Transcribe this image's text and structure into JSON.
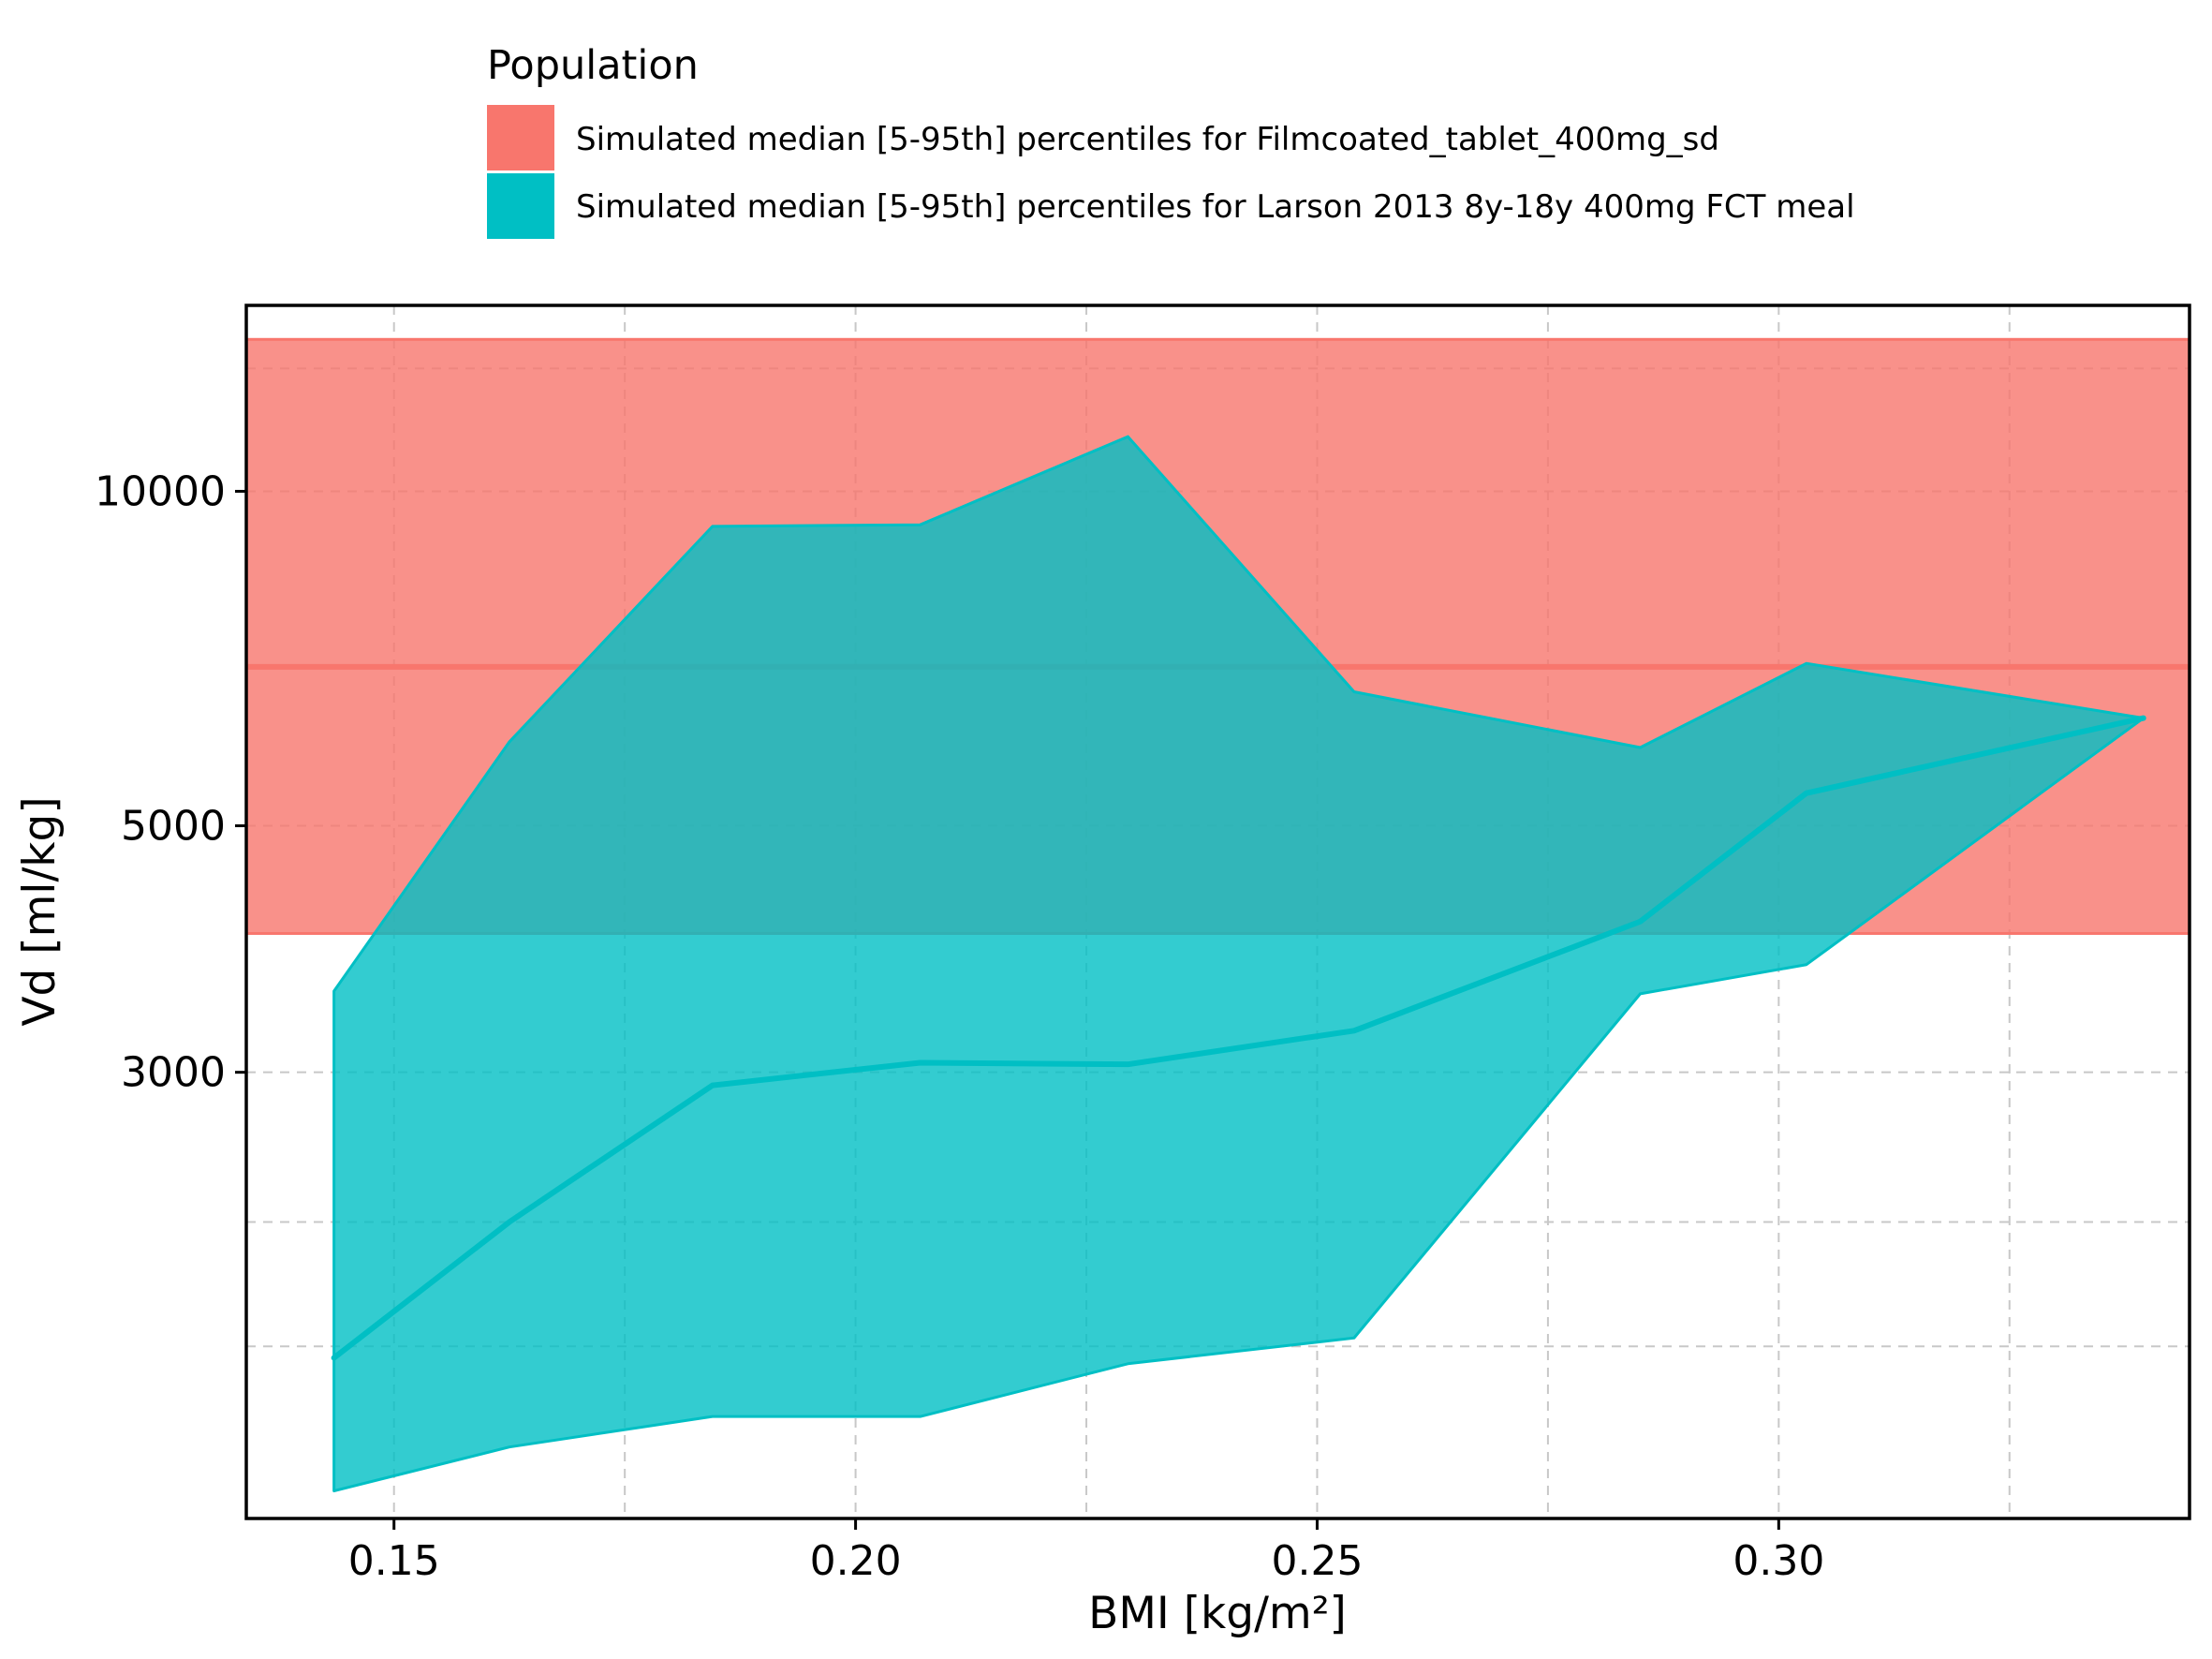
{
  "chart_data": {
    "type": "area",
    "xlabel": "BMI [kg/m²]",
    "ylabel": "Vd [ml/kg]",
    "y_scale": "log",
    "xlim": [
      0.134,
      0.3445
    ],
    "ylim": [
      1190,
      14700
    ],
    "x_ticks": [
      {
        "value": 0.15,
        "label": "0.15"
      },
      {
        "value": 0.2,
        "label": "0.20"
      },
      {
        "value": 0.25,
        "label": "0.25"
      },
      {
        "value": 0.3,
        "label": "0.30"
      }
    ],
    "x_minor_gridlines": [
      0.175,
      0.225,
      0.275,
      0.325
    ],
    "y_ticks": [
      {
        "value": 10000,
        "label": "10000"
      },
      {
        "value": 5000,
        "label": "5000"
      },
      {
        "value": 3000,
        "label": "3000"
      }
    ],
    "y_minor_gridlines": [
      1700,
      2200,
      12900
    ],
    "grid": true,
    "grid_style": "dashed",
    "legend": {
      "title": "Population",
      "position": "top",
      "entries": [
        {
          "label": "Simulated median [5-95th] percentiles for Filmcoated_tablet_400mg_sd",
          "color": "#F8766D"
        },
        {
          "label": "Simulated median [5-95th] percentiles for Larson 2013 8y-18y 400mg FCT meal",
          "color": "#00BFC4"
        }
      ]
    },
    "series": [
      {
        "name": "Simulated median [5-95th] percentiles for Filmcoated_tablet_400mg_sd",
        "color": "#F8766D",
        "kind": "horizontal_band",
        "median": 6950,
        "lower": 4000,
        "upper": 13700
      },
      {
        "name": "Simulated median [5-95th] percentiles for Larson 2013 8y-18y 400mg FCT meal",
        "color": "#00BFC4",
        "kind": "ribbon",
        "x": [
          0.1435,
          0.1625,
          0.1845,
          0.207,
          0.2295,
          0.254,
          0.285,
          0.303,
          0.3395
        ],
        "median": [
          1660,
          2200,
          2920,
          3060,
          3050,
          3270,
          4100,
          5350,
          6250
        ],
        "lower": [
          1260,
          1380,
          1470,
          1470,
          1640,
          1730,
          3530,
          3750,
          6250
        ],
        "upper": [
          3550,
          5950,
          9300,
          9330,
          11200,
          6600,
          5880,
          7000,
          6250
        ]
      }
    ]
  }
}
